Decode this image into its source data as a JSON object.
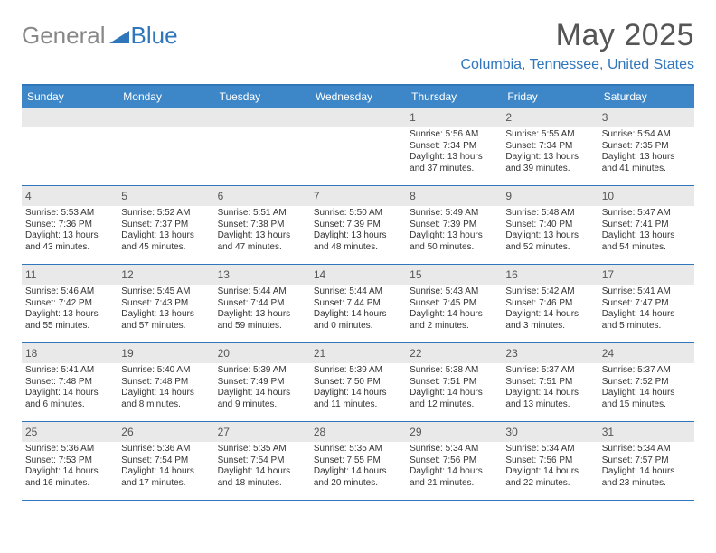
{
  "logo": {
    "text1": "General",
    "text2": "Blue",
    "color1": "#888888",
    "color2": "#2f76bb"
  },
  "title": "May 2025",
  "location": "Columbia, Tennessee, United States",
  "colors": {
    "header_bg": "#3d87c9",
    "header_text": "#ffffff",
    "accent": "#2f76bb",
    "daynum_bg": "#e9e9e9",
    "text": "#333333"
  },
  "weekdays": [
    "Sunday",
    "Monday",
    "Tuesday",
    "Wednesday",
    "Thursday",
    "Friday",
    "Saturday"
  ],
  "weeks": [
    [
      {
        "n": "",
        "sr": "",
        "ss": "",
        "dl": ""
      },
      {
        "n": "",
        "sr": "",
        "ss": "",
        "dl": ""
      },
      {
        "n": "",
        "sr": "",
        "ss": "",
        "dl": ""
      },
      {
        "n": "",
        "sr": "",
        "ss": "",
        "dl": ""
      },
      {
        "n": "1",
        "sr": "5:56 AM",
        "ss": "7:34 PM",
        "dl": "13 hours and 37 minutes."
      },
      {
        "n": "2",
        "sr": "5:55 AM",
        "ss": "7:34 PM",
        "dl": "13 hours and 39 minutes."
      },
      {
        "n": "3",
        "sr": "5:54 AM",
        "ss": "7:35 PM",
        "dl": "13 hours and 41 minutes."
      }
    ],
    [
      {
        "n": "4",
        "sr": "5:53 AM",
        "ss": "7:36 PM",
        "dl": "13 hours and 43 minutes."
      },
      {
        "n": "5",
        "sr": "5:52 AM",
        "ss": "7:37 PM",
        "dl": "13 hours and 45 minutes."
      },
      {
        "n": "6",
        "sr": "5:51 AM",
        "ss": "7:38 PM",
        "dl": "13 hours and 47 minutes."
      },
      {
        "n": "7",
        "sr": "5:50 AM",
        "ss": "7:39 PM",
        "dl": "13 hours and 48 minutes."
      },
      {
        "n": "8",
        "sr": "5:49 AM",
        "ss": "7:39 PM",
        "dl": "13 hours and 50 minutes."
      },
      {
        "n": "9",
        "sr": "5:48 AM",
        "ss": "7:40 PM",
        "dl": "13 hours and 52 minutes."
      },
      {
        "n": "10",
        "sr": "5:47 AM",
        "ss": "7:41 PM",
        "dl": "13 hours and 54 minutes."
      }
    ],
    [
      {
        "n": "11",
        "sr": "5:46 AM",
        "ss": "7:42 PM",
        "dl": "13 hours and 55 minutes."
      },
      {
        "n": "12",
        "sr": "5:45 AM",
        "ss": "7:43 PM",
        "dl": "13 hours and 57 minutes."
      },
      {
        "n": "13",
        "sr": "5:44 AM",
        "ss": "7:44 PM",
        "dl": "13 hours and 59 minutes."
      },
      {
        "n": "14",
        "sr": "5:44 AM",
        "ss": "7:44 PM",
        "dl": "14 hours and 0 minutes."
      },
      {
        "n": "15",
        "sr": "5:43 AM",
        "ss": "7:45 PM",
        "dl": "14 hours and 2 minutes."
      },
      {
        "n": "16",
        "sr": "5:42 AM",
        "ss": "7:46 PM",
        "dl": "14 hours and 3 minutes."
      },
      {
        "n": "17",
        "sr": "5:41 AM",
        "ss": "7:47 PM",
        "dl": "14 hours and 5 minutes."
      }
    ],
    [
      {
        "n": "18",
        "sr": "5:41 AM",
        "ss": "7:48 PM",
        "dl": "14 hours and 6 minutes."
      },
      {
        "n": "19",
        "sr": "5:40 AM",
        "ss": "7:48 PM",
        "dl": "14 hours and 8 minutes."
      },
      {
        "n": "20",
        "sr": "5:39 AM",
        "ss": "7:49 PM",
        "dl": "14 hours and 9 minutes."
      },
      {
        "n": "21",
        "sr": "5:39 AM",
        "ss": "7:50 PM",
        "dl": "14 hours and 11 minutes."
      },
      {
        "n": "22",
        "sr": "5:38 AM",
        "ss": "7:51 PM",
        "dl": "14 hours and 12 minutes."
      },
      {
        "n": "23",
        "sr": "5:37 AM",
        "ss": "7:51 PM",
        "dl": "14 hours and 13 minutes."
      },
      {
        "n": "24",
        "sr": "5:37 AM",
        "ss": "7:52 PM",
        "dl": "14 hours and 15 minutes."
      }
    ],
    [
      {
        "n": "25",
        "sr": "5:36 AM",
        "ss": "7:53 PM",
        "dl": "14 hours and 16 minutes."
      },
      {
        "n": "26",
        "sr": "5:36 AM",
        "ss": "7:54 PM",
        "dl": "14 hours and 17 minutes."
      },
      {
        "n": "27",
        "sr": "5:35 AM",
        "ss": "7:54 PM",
        "dl": "14 hours and 18 minutes."
      },
      {
        "n": "28",
        "sr": "5:35 AM",
        "ss": "7:55 PM",
        "dl": "14 hours and 20 minutes."
      },
      {
        "n": "29",
        "sr": "5:34 AM",
        "ss": "7:56 PM",
        "dl": "14 hours and 21 minutes."
      },
      {
        "n": "30",
        "sr": "5:34 AM",
        "ss": "7:56 PM",
        "dl": "14 hours and 22 minutes."
      },
      {
        "n": "31",
        "sr": "5:34 AM",
        "ss": "7:57 PM",
        "dl": "14 hours and 23 minutes."
      }
    ]
  ],
  "labels": {
    "sunrise": "Sunrise:",
    "sunset": "Sunset:",
    "daylight": "Daylight:"
  }
}
